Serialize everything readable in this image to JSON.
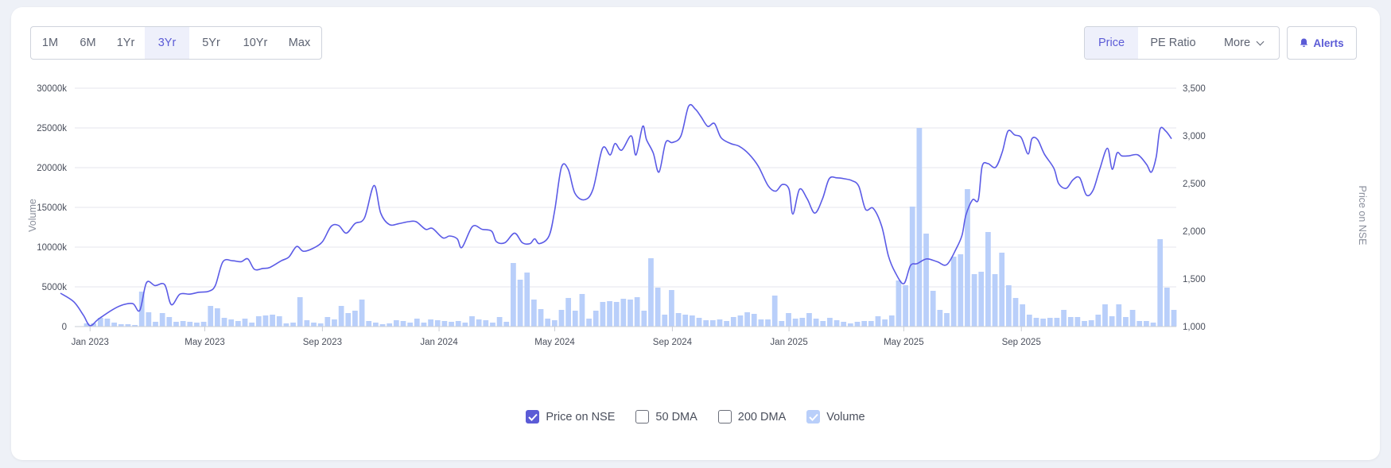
{
  "range_buttons": [
    "1M",
    "6M",
    "1Yr",
    "3Yr",
    "5Yr",
    "10Yr",
    "Max"
  ],
  "active_range": "3Yr",
  "view_buttons": {
    "price": "Price",
    "pe": "PE Ratio",
    "more": "More"
  },
  "active_view": "Price",
  "alerts_label": "Alerts",
  "colors": {
    "accent": "#5b5bd6",
    "price_line": "#5b5be6",
    "volume_bar": "#b9cffa",
    "grid": "#e4e6ec"
  },
  "legend": {
    "price": "Price on NSE",
    "dma50": "50 DMA",
    "dma200": "200 DMA",
    "volume": "Volume"
  },
  "chart_data": {
    "type": "line",
    "ylabel_left": "Volume",
    "ylabel_right": "Price on NSE",
    "left_axis": {
      "ticks": [
        "0",
        "5000k",
        "10000k",
        "15000k",
        "20000k",
        "25000k",
        "30000k"
      ],
      "min": 0,
      "max": 30000,
      "unit": "k"
    },
    "right_axis": {
      "ticks": [
        "1,000",
        "1,500",
        "2,000",
        "2,500",
        "3,000",
        "3,500"
      ],
      "min": 1000,
      "max": 3500
    },
    "x_axis": {
      "start": "2022-12",
      "end": "2025-12",
      "tick_labels": [
        "Jan 2023",
        "May 2023",
        "Sep 2023",
        "Jan 2024",
        "May 2024",
        "Sep 2024",
        "Jan 2025",
        "May 2025",
        "Sep 2025"
      ]
    },
    "grid": true,
    "series": [
      {
        "name": "Price on NSE",
        "type": "line",
        "points": [
          [
            "2022-12-01",
            1350
          ],
          [
            "2022-12-15",
            1260
          ],
          [
            "2022-12-25",
            1120
          ],
          [
            "2023-01-01",
            1010
          ],
          [
            "2023-01-10",
            1080
          ],
          [
            "2023-01-25",
            1180
          ],
          [
            "2023-02-05",
            1230
          ],
          [
            "2023-02-15",
            1240
          ],
          [
            "2023-02-22",
            1170
          ],
          [
            "2023-03-01",
            1460
          ],
          [
            "2023-03-10",
            1430
          ],
          [
            "2023-03-20",
            1440
          ],
          [
            "2023-03-27",
            1230
          ],
          [
            "2023-04-05",
            1340
          ],
          [
            "2023-04-15",
            1340
          ],
          [
            "2023-04-25",
            1360
          ],
          [
            "2023-05-05",
            1370
          ],
          [
            "2023-05-12",
            1430
          ],
          [
            "2023-05-20",
            1680
          ],
          [
            "2023-05-30",
            1690
          ],
          [
            "2023-06-08",
            1680
          ],
          [
            "2023-06-15",
            1710
          ],
          [
            "2023-06-22",
            1600
          ],
          [
            "2023-07-01",
            1610
          ],
          [
            "2023-07-08",
            1620
          ],
          [
            "2023-07-20",
            1690
          ],
          [
            "2023-07-28",
            1730
          ],
          [
            "2023-08-05",
            1840
          ],
          [
            "2023-08-12",
            1790
          ],
          [
            "2023-08-22",
            1820
          ],
          [
            "2023-09-01",
            1890
          ],
          [
            "2023-09-10",
            2050
          ],
          [
            "2023-09-18",
            2060
          ],
          [
            "2023-09-26",
            1980
          ],
          [
            "2023-10-05",
            2080
          ],
          [
            "2023-10-15",
            2140
          ],
          [
            "2023-10-25",
            2480
          ],
          [
            "2023-11-01",
            2190
          ],
          [
            "2023-11-10",
            2070
          ],
          [
            "2023-11-20",
            2080
          ],
          [
            "2023-11-30",
            2100
          ],
          [
            "2023-12-08",
            2100
          ],
          [
            "2023-12-18",
            2020
          ],
          [
            "2023-12-25",
            2030
          ],
          [
            "2024-01-05",
            1930
          ],
          [
            "2024-01-12",
            1950
          ],
          [
            "2024-01-20",
            1920
          ],
          [
            "2024-01-25",
            1830
          ],
          [
            "2024-02-05",
            2050
          ],
          [
            "2024-02-15",
            2020
          ],
          [
            "2024-02-25",
            2000
          ],
          [
            "2024-03-01",
            1890
          ],
          [
            "2024-03-10",
            1880
          ],
          [
            "2024-03-20",
            1980
          ],
          [
            "2024-03-28",
            1880
          ],
          [
            "2024-04-05",
            1870
          ],
          [
            "2024-04-10",
            1920
          ],
          [
            "2024-04-15",
            1870
          ],
          [
            "2024-04-25",
            1950
          ],
          [
            "2024-05-01",
            2220
          ],
          [
            "2024-05-08",
            2670
          ],
          [
            "2024-05-15",
            2650
          ],
          [
            "2024-05-22",
            2400
          ],
          [
            "2024-06-01",
            2330
          ],
          [
            "2024-06-10",
            2440
          ],
          [
            "2024-06-20",
            2870
          ],
          [
            "2024-06-28",
            2800
          ],
          [
            "2024-07-03",
            2920
          ],
          [
            "2024-07-10",
            2850
          ],
          [
            "2024-07-20",
            3000
          ],
          [
            "2024-07-25",
            2800
          ],
          [
            "2024-08-01",
            3100
          ],
          [
            "2024-08-05",
            2960
          ],
          [
            "2024-08-12",
            2820
          ],
          [
            "2024-08-18",
            2620
          ],
          [
            "2024-08-25",
            2930
          ],
          [
            "2024-09-01",
            2930
          ],
          [
            "2024-09-10",
            3000
          ],
          [
            "2024-09-18",
            3310
          ],
          [
            "2024-09-25",
            3280
          ],
          [
            "2024-10-01",
            3200
          ],
          [
            "2024-10-08",
            3100
          ],
          [
            "2024-10-15",
            3130
          ],
          [
            "2024-10-22",
            2980
          ],
          [
            "2024-11-01",
            2920
          ],
          [
            "2024-11-10",
            2890
          ],
          [
            "2024-11-20",
            2810
          ],
          [
            "2024-11-30",
            2680
          ],
          [
            "2024-12-10",
            2480
          ],
          [
            "2024-12-18",
            2420
          ],
          [
            "2024-12-25",
            2490
          ],
          [
            "2025-01-01",
            2440
          ],
          [
            "2025-01-05",
            2180
          ],
          [
            "2025-01-12",
            2440
          ],
          [
            "2025-01-20",
            2340
          ],
          [
            "2025-01-28",
            2190
          ],
          [
            "2025-02-05",
            2340
          ],
          [
            "2025-02-12",
            2550
          ],
          [
            "2025-02-20",
            2560
          ],
          [
            "2025-02-28",
            2550
          ],
          [
            "2025-03-08",
            2530
          ],
          [
            "2025-03-15",
            2470
          ],
          [
            "2025-03-22",
            2230
          ],
          [
            "2025-03-30",
            2240
          ],
          [
            "2025-04-08",
            2050
          ],
          [
            "2025-04-15",
            1740
          ],
          [
            "2025-04-22",
            1570
          ],
          [
            "2025-05-01",
            1450
          ],
          [
            "2025-05-08",
            1640
          ],
          [
            "2025-05-15",
            1660
          ],
          [
            "2025-05-25",
            1710
          ],
          [
            "2025-06-05",
            1680
          ],
          [
            "2025-06-15",
            1650
          ],
          [
            "2025-06-25",
            1820
          ],
          [
            "2025-07-01",
            1960
          ],
          [
            "2025-07-05",
            2170
          ],
          [
            "2025-07-12",
            2330
          ],
          [
            "2025-07-18",
            2330
          ],
          [
            "2025-07-22",
            2680
          ],
          [
            "2025-07-28",
            2710
          ],
          [
            "2025-08-05",
            2670
          ],
          [
            "2025-08-12",
            2830
          ],
          [
            "2025-08-18",
            3050
          ],
          [
            "2025-08-25",
            3010
          ],
          [
            "2025-09-01",
            2980
          ],
          [
            "2025-09-08",
            2810
          ],
          [
            "2025-09-12",
            2970
          ],
          [
            "2025-09-18",
            2960
          ],
          [
            "2025-09-25",
            2810
          ],
          [
            "2025-10-05",
            2660
          ],
          [
            "2025-10-10",
            2500
          ],
          [
            "2025-10-18",
            2450
          ],
          [
            "2025-10-25",
            2540
          ],
          [
            "2025-11-01",
            2560
          ],
          [
            "2025-11-08",
            2380
          ],
          [
            "2025-11-15",
            2430
          ],
          [
            "2025-11-22",
            2650
          ],
          [
            "2025-11-30",
            2870
          ],
          [
            "2025-12-05",
            2650
          ],
          [
            "2025-12-10",
            2820
          ],
          [
            "2025-12-15",
            2790
          ],
          [
            "2025-12-22",
            2790
          ],
          [
            "2026-01-01",
            2800
          ],
          [
            "2026-01-10",
            2700
          ],
          [
            "2026-01-15",
            2620
          ],
          [
            "2026-01-20",
            2780
          ],
          [
            "2026-01-24",
            3070
          ],
          [
            "2026-01-30",
            3050
          ],
          [
            "2026-02-05",
            2970
          ]
        ]
      },
      {
        "name": "Volume",
        "type": "bar",
        "unit": "k",
        "values": [
          400,
          400,
          1100,
          1000,
          500,
          300,
          300,
          200,
          4400,
          1800,
          600,
          1700,
          1200,
          600,
          700,
          600,
          500,
          600,
          2600,
          2300,
          1100,
          900,
          700,
          1000,
          500,
          1300,
          1400,
          1500,
          1300,
          400,
          500,
          3700,
          800,
          500,
          400,
          1200,
          900,
          2600,
          1700,
          2000,
          3400,
          700,
          500,
          300,
          400,
          800,
          700,
          500,
          1000,
          500,
          900,
          800,
          700,
          600,
          700,
          500,
          1300,
          900,
          800,
          500,
          1200,
          600,
          8000,
          5900,
          6800,
          3400,
          2200,
          1000,
          800,
          2100,
          3600,
          2000,
          4100,
          1000,
          2000,
          3100,
          3200,
          3100,
          3500,
          3400,
          3700,
          2000,
          8600,
          4900,
          1500,
          4600,
          1700,
          1500,
          1400,
          1100,
          800,
          800,
          900,
          700,
          1200,
          1400,
          1800,
          1600,
          900,
          900,
          3900,
          700,
          1700,
          1000,
          1100,
          1700,
          1000,
          700,
          1100,
          800,
          600,
          400,
          600,
          700,
          700,
          1300,
          900,
          1400,
          5800,
          5200,
          15100,
          25000,
          11700,
          4500,
          2100,
          1700,
          8800,
          9100,
          17300,
          6600,
          6900,
          11900,
          6600,
          9300,
          5200,
          3600,
          2800,
          1500,
          1100,
          1000,
          1100,
          1100,
          2100,
          1200,
          1200,
          700,
          800,
          1500,
          2800,
          1300,
          2800,
          1200,
          2100,
          700,
          700,
          500,
          11000,
          4900,
          2100
        ]
      }
    ]
  }
}
